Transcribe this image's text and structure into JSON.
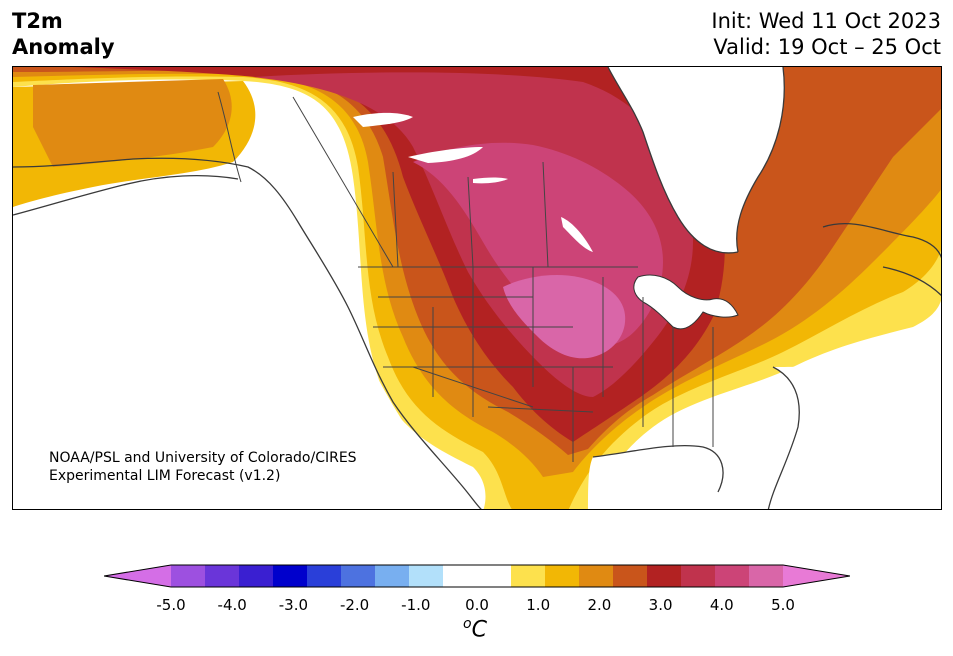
{
  "title": {
    "left_line1": "T2m",
    "left_line2": "Anomaly",
    "init": "Init: Wed 11 Oct 2023",
    "valid": "Valid: 19 Oct – 25 Oct"
  },
  "credit": {
    "line1": "NOAA/PSL and University of Colorado/CIRES",
    "line2": "Experimental LIM Forecast (v1.2)"
  },
  "colorbar": {
    "colors": [
      "#d46ee6",
      "#9d50e0",
      "#6a35d9",
      "#3a1fd1",
      "#0000cc",
      "#2a3fd9",
      "#4d72e0",
      "#78aff0",
      "#b2e0fa",
      "#ffffff",
      "#ffffff",
      "#fde14d",
      "#f2b705",
      "#e08a12",
      "#c9551b",
      "#b22222",
      "#c0334d",
      "#cc4477",
      "#d966a8",
      "#e87ad6"
    ],
    "ticks": [
      "-5.0",
      "-4.0",
      "-3.0",
      "-2.0",
      "-1.0",
      "0.0",
      "1.0",
      "2.0",
      "3.0",
      "4.0",
      "5.0"
    ],
    "unit_base": "C",
    "unit_sup": "o",
    "extend": "both"
  },
  "map": {
    "region": "North America",
    "variable": "2m temperature anomaly",
    "anomaly_colors": {
      "c1": "#fde14d",
      "c1_5": "#f2b705",
      "c2": "#e08a12",
      "c2_5": "#c9551b",
      "c3": "#b22222",
      "c3_5": "#c0334d",
      "c4": "#cc4477",
      "c4_5": "#d966a8"
    }
  }
}
